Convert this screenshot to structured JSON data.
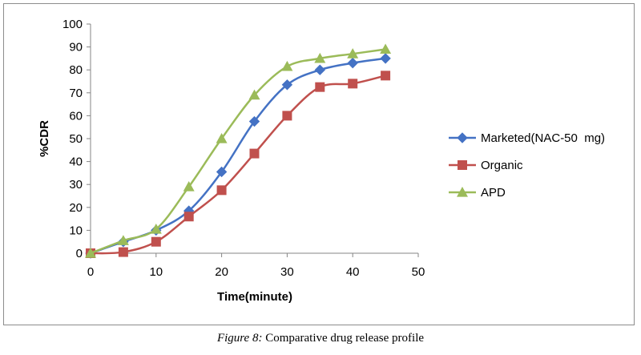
{
  "chart_data": {
    "type": "line",
    "xlabel": "Time(minute)",
    "ylabel": "%CDR",
    "xlim": [
      0,
      50
    ],
    "ylim": [
      0,
      100
    ],
    "xticks": [
      0,
      10,
      20,
      30,
      40,
      50
    ],
    "yticks": [
      0,
      10,
      20,
      30,
      40,
      50,
      60,
      70,
      80,
      90,
      100
    ],
    "grid": false,
    "legend_position": "right",
    "x": [
      0,
      5,
      10,
      15,
      20,
      25,
      30,
      35,
      40,
      45
    ],
    "series": [
      {
        "name": "Marketed(NAC-50  mg)",
        "color": "#4472C4",
        "marker": "diamond",
        "values": [
          0,
          5,
          10,
          18.5,
          35.5,
          57.5,
          73.5,
          80,
          83,
          85
        ]
      },
      {
        "name": "Organic",
        "color": "#C0504D",
        "marker": "square",
        "values": [
          0,
          0.5,
          5,
          16,
          27.5,
          43.5,
          60,
          72.5,
          74,
          77.5
        ]
      },
      {
        "name": "APD",
        "color": "#9BBB59",
        "marker": "triangle",
        "values": [
          0,
          5.5,
          10.5,
          29,
          50,
          69,
          81.5,
          85,
          87,
          89
        ]
      }
    ]
  },
  "caption": {
    "figure_label": "Figure 8:",
    "text": " Comparative drug release profile"
  }
}
